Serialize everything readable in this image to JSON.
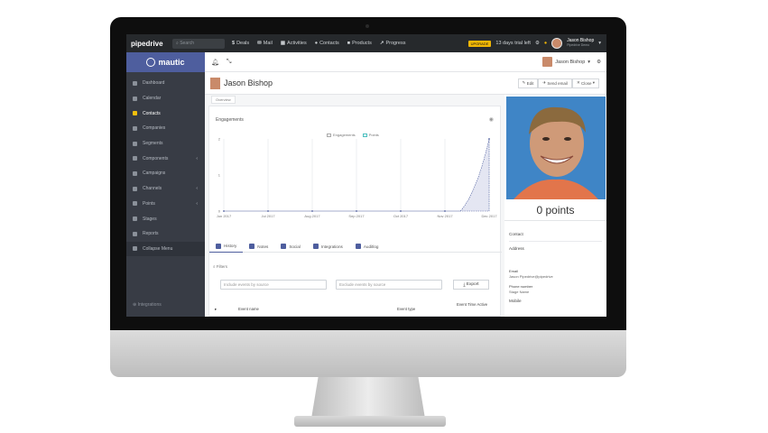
{
  "colors": {
    "accent": "#4e5e9e",
    "pipedrive_bar": "#26292c",
    "sidebar": "#383c45",
    "active_icon": "#f3c00d"
  },
  "pipedrive": {
    "logo": "pipedrive",
    "search_placeholder": "Search",
    "nav": [
      {
        "label": "Deals",
        "icon": "dollar-icon"
      },
      {
        "label": "Mail",
        "icon": "mail-icon"
      },
      {
        "label": "Activities",
        "icon": "calendar-icon"
      },
      {
        "label": "Contacts",
        "icon": "person-icon"
      },
      {
        "label": "Products",
        "icon": "box-icon"
      },
      {
        "label": "Progress",
        "icon": "chart-icon"
      }
    ],
    "upgrade": "UPGRADE",
    "trial_text": "13 days trial left",
    "user_name": "Jason Bishop",
    "user_sub": "Pipedrive Demo"
  },
  "mautic": {
    "logo": "mautic",
    "menu": [
      {
        "label": "Dashboard",
        "icon": "dashboard-icon"
      },
      {
        "label": "Calendar",
        "icon": "calendar-icon"
      },
      {
        "label": "Contacts",
        "icon": "contacts-icon",
        "active": true
      },
      {
        "label": "Companies",
        "icon": "building-icon"
      },
      {
        "label": "Segments",
        "icon": "segments-icon"
      },
      {
        "label": "Components",
        "icon": "puzzle-icon",
        "arrow": "‹"
      },
      {
        "label": "Campaigns",
        "icon": "clock-icon"
      },
      {
        "label": "Channels",
        "icon": "rss-icon",
        "arrow": "‹"
      },
      {
        "label": "Points",
        "icon": "calculator-icon",
        "arrow": "‹"
      },
      {
        "label": "Stages",
        "icon": "stages-icon"
      },
      {
        "label": "Reports",
        "icon": "reports-icon"
      },
      {
        "label": "Collapse Menu",
        "icon": "collapse-icon"
      }
    ],
    "footer": "Integrations",
    "top_user": "Jason Bishop"
  },
  "contact": {
    "name": "Jason Bishop",
    "subnav": "Overview",
    "buttons": [
      "Edit",
      "Send email",
      "Close"
    ],
    "engagements_title": "Engagements",
    "legend": [
      "Engagements",
      "Points"
    ],
    "tabs": [
      "History",
      "Notes",
      "Social",
      "Integrations",
      "Auditlog"
    ],
    "filter_label": "Filters",
    "include_placeholder": "Include events by source",
    "exclude_placeholder": "Exclude events by source",
    "export_label": "Export",
    "table_headers": [
      "Event name",
      "Event type",
      "Event Time Active"
    ],
    "points_text": "0 points",
    "right_labels": [
      "Contact",
      "Address",
      "Email",
      "Jason Pipedrive@pipedrive",
      "Phone number",
      "Stage Name",
      "Mobile"
    ]
  },
  "chart_data": {
    "type": "area",
    "x": [
      "Jun 2017",
      "Jul 2017",
      "Aug 2017",
      "Sep 2017",
      "Oct 2017",
      "Nov 2017",
      "Dec 2017"
    ],
    "series": [
      {
        "name": "Engagements",
        "values": [
          0,
          0,
          0,
          0,
          0,
          0,
          2
        ]
      }
    ],
    "ylim": [
      0,
      2
    ],
    "yticks": [
      "0",
      "1",
      "2"
    ]
  }
}
